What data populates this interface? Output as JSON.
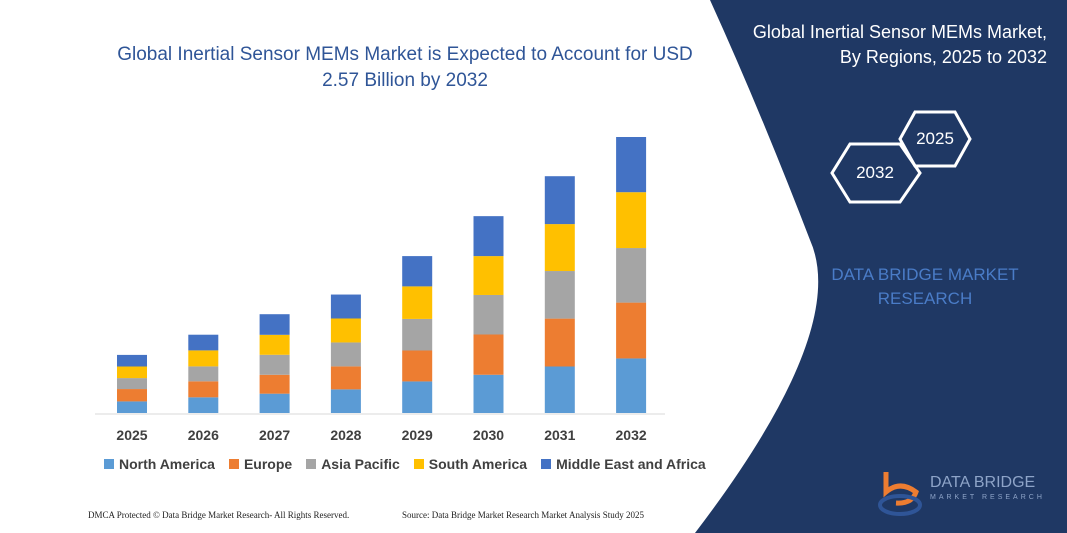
{
  "header": {
    "title": "Global Inertial Sensor MEMs Market is Expected to Account for USD 2.57 Billion by 2032"
  },
  "side_panel": {
    "title": "Global Inertial Sensor MEMs Market, By Regions, 2025 to 2032",
    "hex_right": "2025",
    "hex_left": "2032",
    "brand_text": "DATA BRIDGE MARKET RESEARCH",
    "logo_title": "DATA BRIDGE",
    "logo_subtitle": "MARKET RESEARCH"
  },
  "footer": {
    "left": "DMCA Protected © Data Bridge Market Research- All Rights Reserved.",
    "right": "Source: Data Bridge Market Research  Market Analysis Study 2025"
  },
  "colors": {
    "panel": "#1f3864",
    "title": "#2f5597"
  },
  "chart_data": {
    "type": "bar",
    "stacked": true,
    "categories": [
      "2025",
      "2026",
      "2027",
      "2028",
      "2029",
      "2030",
      "2031",
      "2032"
    ],
    "ylim": [
      0,
      2.57
    ],
    "grid": false,
    "legend_position": "bottom",
    "series": [
      {
        "name": "North America",
        "color": "#5b9bd5",
        "values": [
          0.108,
          0.146,
          0.18,
          0.22,
          0.294,
          0.356,
          0.433,
          0.508
        ]
      },
      {
        "name": "Europe",
        "color": "#ed7d31",
        "values": [
          0.115,
          0.149,
          0.176,
          0.214,
          0.288,
          0.375,
          0.446,
          0.52
        ]
      },
      {
        "name": "Asia Pacific",
        "color": "#a5a5a5",
        "values": [
          0.102,
          0.139,
          0.186,
          0.223,
          0.294,
          0.368,
          0.443,
          0.508
        ]
      },
      {
        "name": "South America",
        "color": "#ffc000",
        "values": [
          0.108,
          0.149,
          0.186,
          0.223,
          0.303,
          0.362,
          0.437,
          0.52
        ]
      },
      {
        "name": "Middle East and Africa",
        "color": "#4472c4",
        "values": [
          0.108,
          0.146,
          0.192,
          0.223,
          0.282,
          0.372,
          0.446,
          0.514
        ]
      }
    ]
  }
}
